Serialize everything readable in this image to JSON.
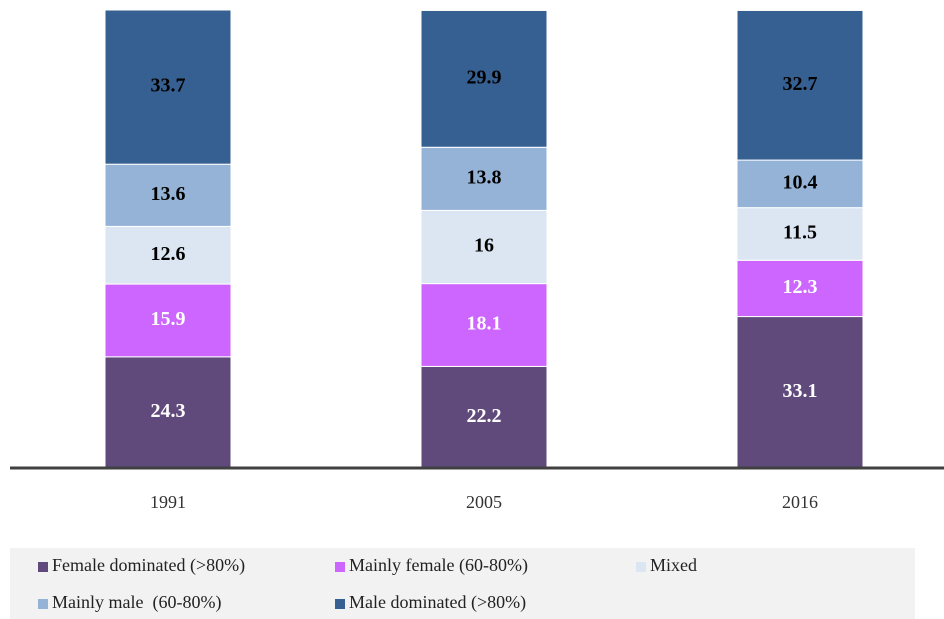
{
  "chart_data": {
    "type": "stacked_bar",
    "categories": [
      "1991",
      "2005",
      "2016"
    ],
    "series": [
      {
        "name": "Female dominated (>80%)",
        "color": "#604a7b",
        "label_color": "#ffffff",
        "values": [
          24.3,
          22.2,
          33.1
        ]
      },
      {
        "name": "Mainly female (60-80%)",
        "color": "#cc66ff",
        "label_color": "#ffffff",
        "values": [
          15.9,
          18.1,
          12.3
        ]
      },
      {
        "name": "Mixed",
        "color": "#dce6f2",
        "label_color": "#000000",
        "values": [
          12.6,
          16,
          11.5
        ]
      },
      {
        "name": "Mainly male  (60-80%)",
        "color": "#95b3d7",
        "label_color": "#000000",
        "values": [
          13.6,
          13.8,
          10.4
        ]
      },
      {
        "name": "Male dominated (>80%)",
        "color": "#376092",
        "label_color": "#000000",
        "values": [
          33.7,
          29.9,
          32.7
        ]
      }
    ]
  }
}
